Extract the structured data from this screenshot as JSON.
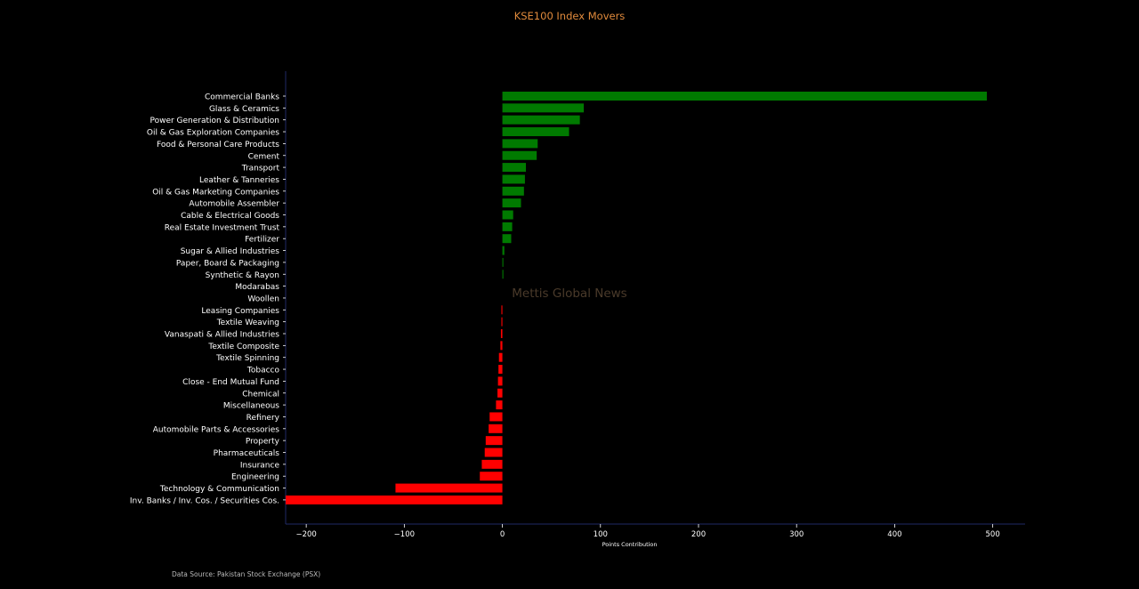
{
  "title": "KSE100 Index Movers",
  "source": "Data Source: Pakistan Stock Exchange (PSX)",
  "watermark": "Mettis Global News",
  "colors": {
    "background": "#000000",
    "title": "#e08a3c",
    "positive": "#007a00",
    "negative": "#ff0000",
    "text": "#ffffff",
    "axis": "#1f2a66",
    "watermark": "#4a3a2a"
  },
  "chart_data": {
    "type": "bar",
    "orientation": "horizontal",
    "title": "KSE100 Index Movers",
    "xlabel": "Points Contribution",
    "ylabel": "",
    "xlim": [
      -221,
      533
    ],
    "xticks": [
      -200,
      -100,
      0,
      100,
      200,
      300,
      400,
      500
    ],
    "xtick_labels": [
      "−200",
      "−100",
      "0",
      "100",
      "200",
      "300",
      "400",
      "500"
    ],
    "grid": false,
    "categories": [
      "Commercial Banks",
      "Glass & Ceramics",
      "Power Generation & Distribution",
      "Oil & Gas Exploration Companies",
      "Food & Personal Care Products",
      "Cement",
      "Transport",
      "Leather & Tanneries",
      "Oil & Gas Marketing Companies",
      "Automobile Assembler",
      "Cable & Electrical Goods",
      "Real Estate Investment Trust",
      "Fertilizer",
      "Sugar & Allied Industries",
      "Paper, Board & Packaging",
      "Synthetic & Rayon",
      "Modarabas",
      "Woollen",
      "Leasing Companies",
      "Textile Weaving",
      "Vanaspati & Allied Industries",
      "Textile Composite",
      "Textile Spinning",
      "Tobacco",
      "Close - End Mutual Fund",
      "Chemical",
      "Miscellaneous",
      "Refinery",
      "Automobile Parts & Accessories",
      "Property",
      "Pharmaceuticals",
      "Insurance",
      "Engineering",
      "Technology & Communication",
      "Inv. Banks / Inv. Cos. / Securities Cos."
    ],
    "values": [
      494,
      83,
      79,
      68,
      36,
      35,
      24,
      23,
      22,
      19,
      11,
      10,
      9,
      2,
      1,
      1,
      0,
      0,
      -1,
      -1,
      -1.5,
      -2,
      -3.5,
      -4,
      -4.5,
      -5,
      -6.5,
      -13,
      -14,
      -17,
      -18,
      -21,
      -23,
      -109,
      -221
    ]
  }
}
